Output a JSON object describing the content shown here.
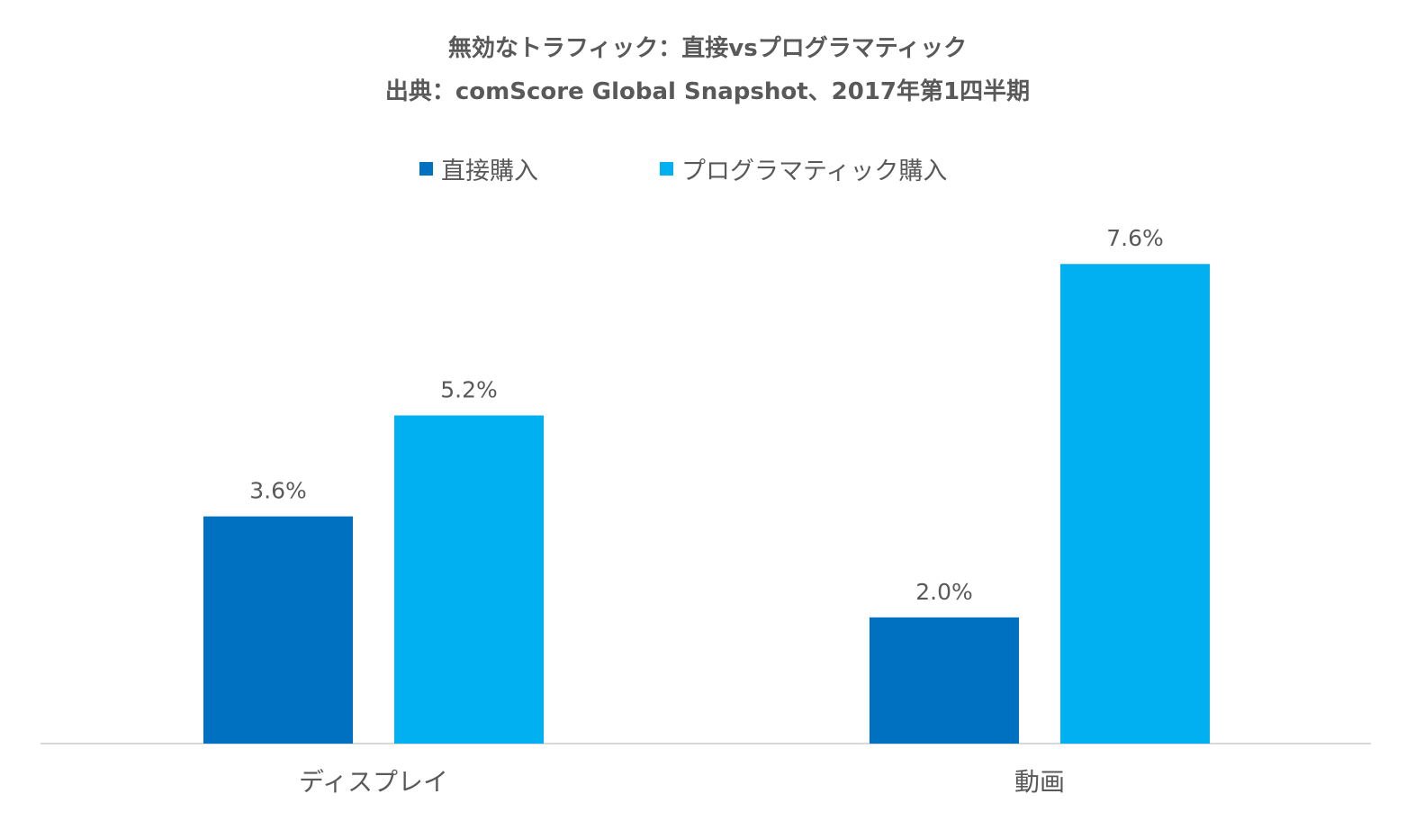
{
  "chart_data": {
    "type": "bar",
    "title": "無効なトラフィック：直接vsプログラマティック",
    "subtitle": "出典：comScore Global Snapshot、2017年第1四半期",
    "categories": [
      "ディスプレイ",
      "動画"
    ],
    "series": [
      {
        "name": "直接購入",
        "color": "#0070C0",
        "values": [
          3.6,
          2.0
        ],
        "labels": [
          "3.6%",
          "2.0%"
        ]
      },
      {
        "name": "プログラマティック購入",
        "color": "#00B0F0",
        "values": [
          5.2,
          7.6
        ],
        "labels": [
          "5.2%",
          "7.6%"
        ]
      }
    ],
    "ylim": [
      0,
      9
    ],
    "grid": false,
    "legend_position": "top"
  }
}
